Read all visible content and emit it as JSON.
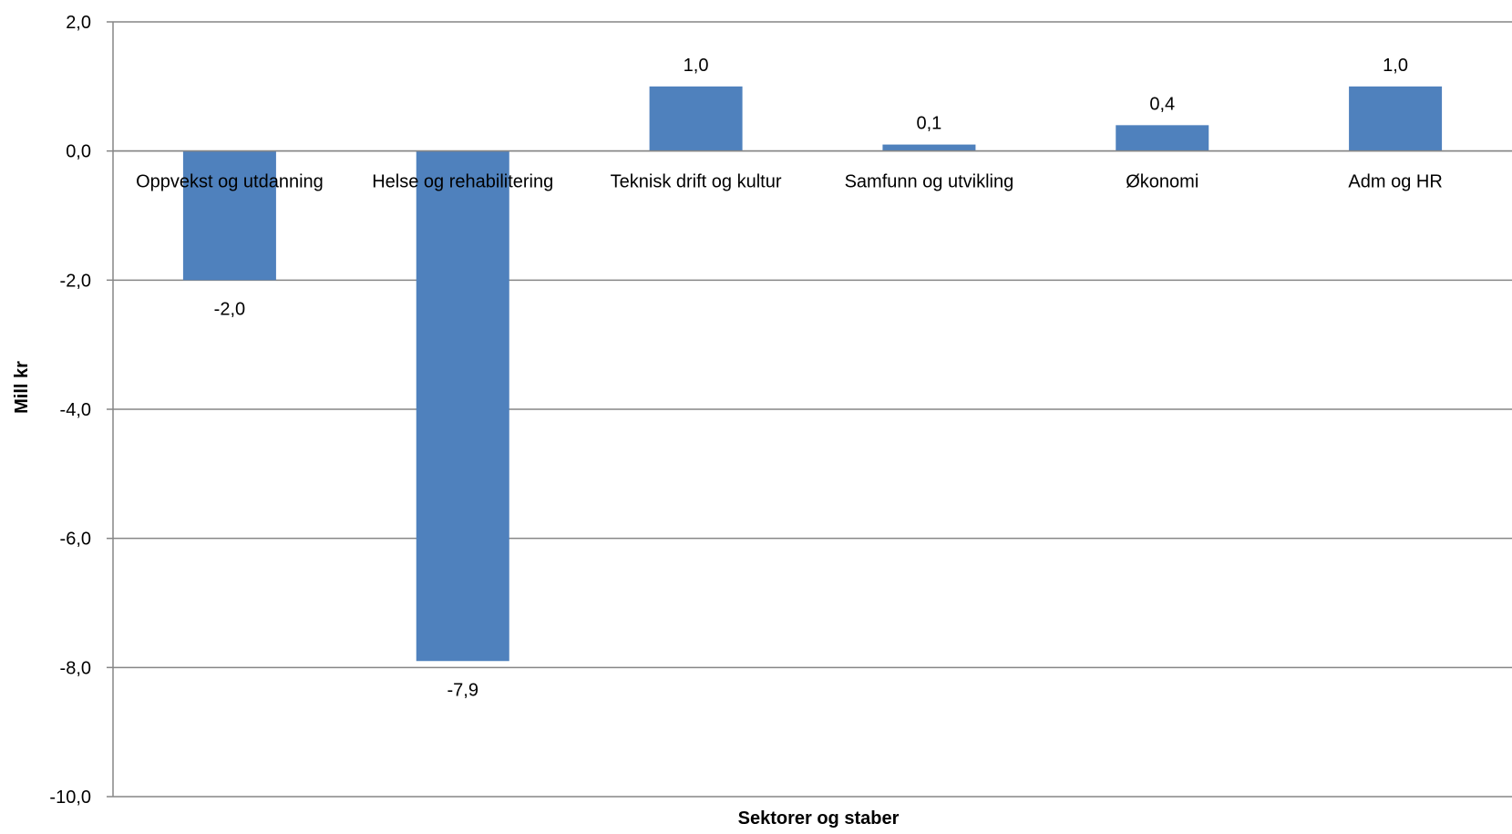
{
  "chart_data": {
    "type": "bar",
    "categories": [
      "Oppvekst og utdanning",
      "Helse og rehabilitering",
      "Teknisk drift og kultur",
      "Samfunn og utvikling",
      "Økonomi",
      "Adm og HR"
    ],
    "values": [
      -2.0,
      -7.9,
      1.0,
      0.1,
      0.4,
      1.0
    ],
    "data_labels": [
      "-2,0",
      "-7,9",
      "1,0",
      "0,1",
      "0,4",
      "1,0"
    ],
    "xlabel": "Sektorer og staber",
    "ylabel": "Mill kr",
    "ylim": [
      -10,
      2
    ],
    "yticks": [
      2,
      0,
      -2,
      -4,
      -6,
      -8,
      -10
    ],
    "ytick_labels": [
      "2,0",
      "0,0",
      "-2,0",
      "-4,0",
      "-6,0",
      "-8,0",
      "-10,0"
    ],
    "grid": true,
    "bar_color": "#4F81BD",
    "grid_color": "#868686"
  }
}
